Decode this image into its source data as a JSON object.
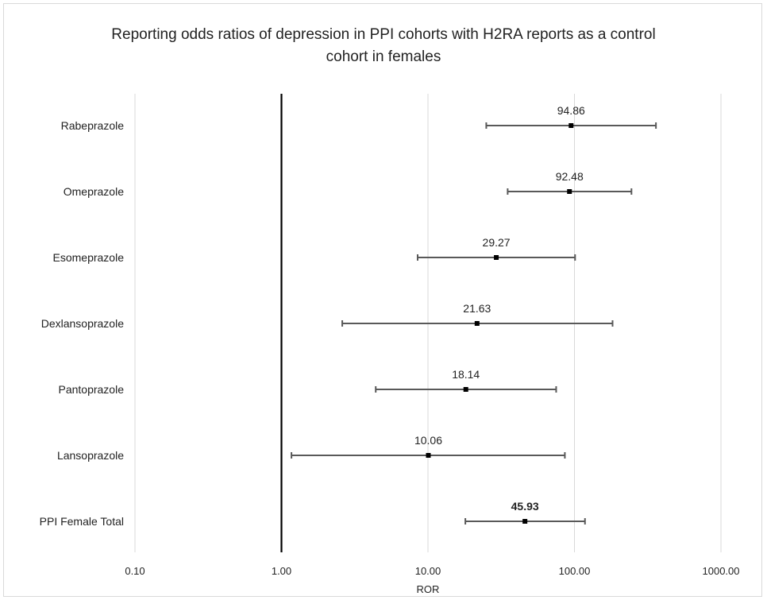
{
  "chart_data": {
    "type": "forest",
    "title_lines": [
      "Reporting odds ratios of depression in PPI cohorts with H2RA reports as a control",
      "cohort in females"
    ],
    "xlabel": "ROR",
    "ylabel": "",
    "x_scale": "log",
    "xlim": [
      0.1,
      1000
    ],
    "x_ticks": [
      0.1,
      1,
      10,
      100,
      1000
    ],
    "x_tick_labels": [
      "0.10",
      "1.00",
      "10.00",
      "100.00",
      "1000.00"
    ],
    "reference_line": 1,
    "grid": "vertical",
    "rows": [
      {
        "label": "Rabeprazole",
        "value": 94.86,
        "value_label": "94.86",
        "lower": 25,
        "upper": 360,
        "bold": false
      },
      {
        "label": "Omeprazole",
        "value": 92.48,
        "value_label": "92.48",
        "lower": 35,
        "upper": 245,
        "bold": false
      },
      {
        "label": "Esomeprazole",
        "value": 29.27,
        "value_label": "29.27",
        "lower": 8.5,
        "upper": 101,
        "bold": false
      },
      {
        "label": "Dexlansoprazole",
        "value": 21.63,
        "value_label": "21.63",
        "lower": 2.6,
        "upper": 182,
        "bold": false
      },
      {
        "label": "Pantoprazole",
        "value": 18.14,
        "value_label": "18.14",
        "lower": 4.4,
        "upper": 75,
        "bold": false
      },
      {
        "label": "Lansoprazole",
        "value": 10.06,
        "value_label": "10.06",
        "lower": 1.17,
        "upper": 86,
        "bold": false
      },
      {
        "label": "PPI Female Total",
        "value": 45.93,
        "value_label": "45.93",
        "lower": 18,
        "upper": 118,
        "bold": true
      }
    ],
    "colors": {
      "marker": "#000000",
      "whisker": "#595959",
      "grid": "#d9d9d9",
      "reference": "#000000",
      "text": "#222222"
    }
  }
}
